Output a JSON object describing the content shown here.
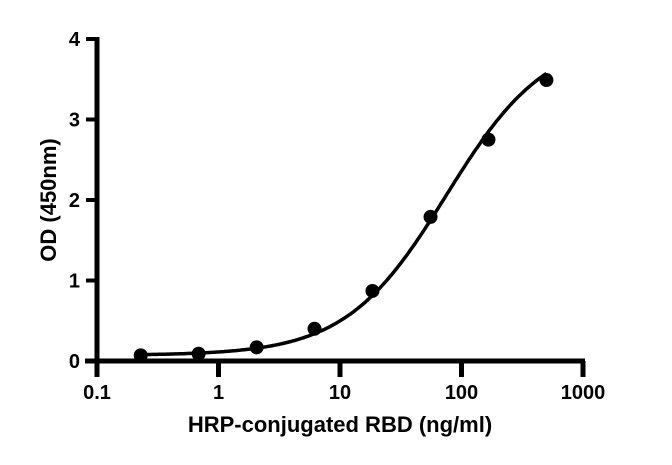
{
  "chart_data": {
    "type": "scatter",
    "title": "",
    "xlabel": "HRP-conjugated RBD (ng/ml)",
    "ylabel": "OD (450nm)",
    "xscale": "log",
    "xlim": [
      0.1,
      1000
    ],
    "ylim": [
      0,
      4
    ],
    "x_ticks": [
      0.1,
      1,
      10,
      100,
      1000
    ],
    "x_tick_labels": [
      "0.1",
      "1",
      "10",
      "100",
      "1000"
    ],
    "y_ticks": [
      0,
      1,
      2,
      3,
      4
    ],
    "y_tick_labels": [
      "0",
      "1",
      "2",
      "3",
      "4"
    ],
    "grid": false,
    "legend": null,
    "series": [
      {
        "name": "HRP-conjugated RBD",
        "marker": "circle",
        "color": "#000000",
        "fit": "4PL sigmoidal curve",
        "x": [
          0.229,
          0.686,
          2.06,
          6.17,
          18.5,
          55.6,
          166.7,
          500
        ],
        "y": [
          0.07,
          0.09,
          0.17,
          0.4,
          0.87,
          1.79,
          2.75,
          3.49
        ]
      }
    ]
  }
}
